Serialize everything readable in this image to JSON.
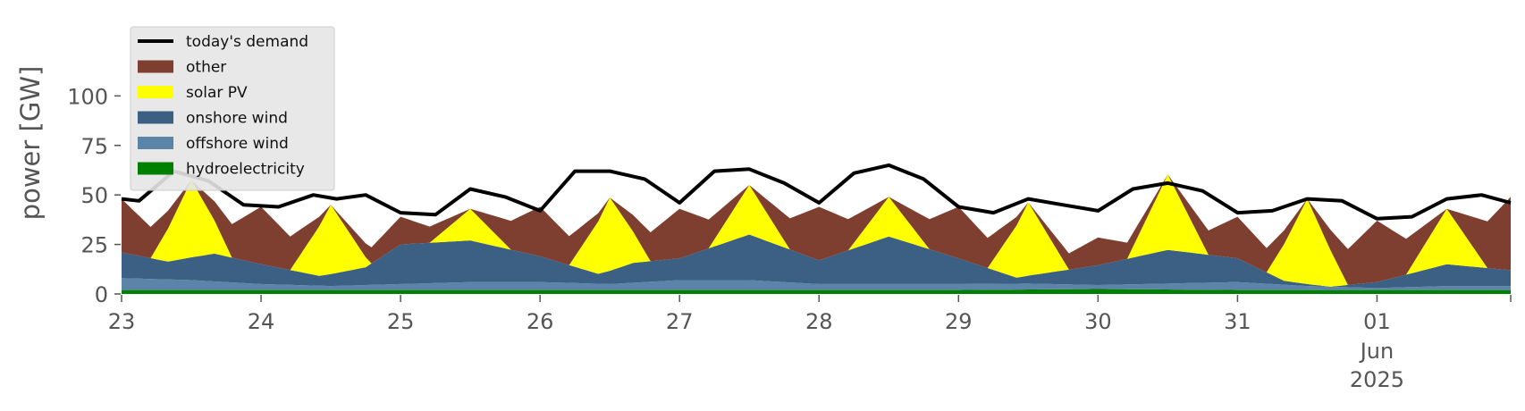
{
  "chart_data": {
    "type": "area",
    "title": "",
    "xlabel": "",
    "ylabel": "power [GW]",
    "ylim": [
      0,
      120
    ],
    "yticks": [
      0,
      25,
      50,
      75,
      100
    ],
    "ytick_labels": [
      "0",
      "25",
      "50",
      "75",
      "100"
    ],
    "x_start": "2025-05-23T00:00",
    "x_end": "2025-06-01T23:00",
    "xticks": [
      {
        "date": "2025-05-23",
        "label": "23"
      },
      {
        "date": "2025-05-24",
        "label": "24"
      },
      {
        "date": "2025-05-25",
        "label": "25"
      },
      {
        "date": "2025-05-26",
        "label": "26"
      },
      {
        "date": "2025-05-27",
        "label": "27"
      },
      {
        "date": "2025-05-28",
        "label": "28"
      },
      {
        "date": "2025-05-29",
        "label": "29"
      },
      {
        "date": "2025-05-30",
        "label": "30"
      },
      {
        "date": "2025-05-31",
        "label": "31"
      },
      {
        "date": "2025-06-01",
        "label": "01"
      }
    ],
    "xtick_sublabels": [
      "Jun",
      "2025"
    ],
    "grid": false,
    "legend": "top-left",
    "stacked": true,
    "series": [
      {
        "name": "hydroelectricity",
        "color": "#008000",
        "x": [
          "2025-05-23T00:00",
          "2025-05-24T00:00",
          "2025-05-25T00:00",
          "2025-05-26T00:00",
          "2025-05-27T00:00",
          "2025-05-28T00:00",
          "2025-05-29T00:00",
          "2025-05-30T00:00",
          "2025-05-31T00:00",
          "2025-06-01T00:00",
          "2025-06-01T23:00"
        ],
        "values": [
          2,
          2,
          2,
          2,
          2,
          2,
          2,
          2.5,
          2,
          2,
          2
        ]
      },
      {
        "name": "offshore wind",
        "color": "#5b84a8",
        "x": [
          "2025-05-23T00:00",
          "2025-05-23T12:00",
          "2025-05-24T00:00",
          "2025-05-24T12:00",
          "2025-05-25T00:00",
          "2025-05-25T12:00",
          "2025-05-26T00:00",
          "2025-05-26T12:00",
          "2025-05-27T00:00",
          "2025-05-27T12:00",
          "2025-05-28T00:00",
          "2025-05-28T12:00",
          "2025-05-29T00:00",
          "2025-05-29T12:00",
          "2025-05-30T00:00",
          "2025-05-30T12:00",
          "2025-05-31T00:00",
          "2025-05-31T12:00",
          "2025-06-01T00:00",
          "2025-06-01T12:00",
          "2025-06-01T23:00"
        ],
        "values": [
          6,
          5,
          3,
          2,
          3,
          4,
          4,
          3,
          5,
          5,
          3,
          3,
          3,
          3,
          2,
          3,
          4,
          2,
          1,
          2,
          2
        ]
      },
      {
        "name": "onshore wind",
        "color": "#3b6083",
        "x": [
          "2025-05-23T00:00",
          "2025-05-23T08:00",
          "2025-05-23T16:00",
          "2025-05-24T00:00",
          "2025-05-24T10:00",
          "2025-05-24T18:00",
          "2025-05-25T00:00",
          "2025-05-25T12:00",
          "2025-05-26T00:00",
          "2025-05-26T10:00",
          "2025-05-26T16:00",
          "2025-05-27T00:00",
          "2025-05-27T12:00",
          "2025-05-28T00:00",
          "2025-05-28T12:00",
          "2025-05-29T00:00",
          "2025-05-29T10:00",
          "2025-05-30T00:00",
          "2025-05-30T12:00",
          "2025-05-31T00:00",
          "2025-05-31T08:00",
          "2025-05-31T16:00",
          "2025-06-01T00:00",
          "2025-06-01T12:00",
          "2025-06-01T23:00"
        ],
        "values": [
          13,
          9,
          14,
          10,
          5,
          9,
          20,
          21,
          13,
          5,
          10,
          11,
          23,
          12,
          24,
          13,
          3,
          10,
          17,
          12,
          2,
          0,
          3,
          11,
          8
        ]
      },
      {
        "name": "solar PV",
        "color": "#ffff00",
        "x": [
          "2025-05-23T00:00",
          "2025-05-23T05:00",
          "2025-05-23T12:00",
          "2025-05-23T19:00",
          "2025-05-24T05:00",
          "2025-05-24T12:00",
          "2025-05-24T19:00",
          "2025-05-25T05:00",
          "2025-05-25T12:00",
          "2025-05-25T19:00",
          "2025-05-26T05:00",
          "2025-05-26T12:00",
          "2025-05-26T19:00",
          "2025-05-27T05:00",
          "2025-05-27T12:00",
          "2025-05-27T19:00",
          "2025-05-28T05:00",
          "2025-05-28T12:00",
          "2025-05-28T19:00",
          "2025-05-29T05:00",
          "2025-05-29T12:00",
          "2025-05-29T19:00",
          "2025-05-30T05:00",
          "2025-05-30T12:00",
          "2025-05-30T19:00",
          "2025-05-31T05:00",
          "2025-05-31T12:00",
          "2025-05-31T19:00",
          "2025-06-01T05:00",
          "2025-06-01T12:00",
          "2025-06-01T19:00"
        ],
        "values": [
          0,
          0,
          39,
          0,
          0,
          35,
          0,
          0,
          16,
          0,
          0,
          37,
          0,
          0,
          25,
          0,
          0,
          20,
          0,
          0,
          37,
          0,
          0,
          38,
          0,
          0,
          43,
          0,
          0,
          28,
          0
        ]
      },
      {
        "name": "other",
        "color": "#7f3f30",
        "x": [
          "2025-05-23T00:00",
          "2025-05-23T12:00",
          "2025-05-24T00:00",
          "2025-05-24T12:00",
          "2025-05-25T00:00",
          "2025-05-25T12:00",
          "2025-05-26T00:00",
          "2025-05-26T12:00",
          "2025-05-27T00:00",
          "2025-05-27T12:00",
          "2025-05-28T00:00",
          "2025-05-28T12:00",
          "2025-05-29T00:00",
          "2025-05-29T12:00",
          "2025-05-30T00:00",
          "2025-05-30T12:00",
          "2025-05-31T00:00",
          "2025-05-31T12:00",
          "2025-06-01T00:00",
          "2025-06-01T12:00",
          "2025-06-01T23:00"
        ],
        "values": [
          27,
          0,
          29,
          0,
          14,
          0,
          25,
          0,
          25,
          0,
          27,
          0,
          26,
          0,
          14,
          0,
          21,
          0,
          31,
          0,
          37
        ]
      },
      {
        "name": "today's demand",
        "color": "#000000",
        "kind": "line",
        "x": [
          "2025-05-23T00:00",
          "2025-05-23T03:00",
          "2025-05-23T09:00",
          "2025-05-23T15:00",
          "2025-05-23T21:00",
          "2025-05-24T03:00",
          "2025-05-24T09:00",
          "2025-05-24T13:00",
          "2025-05-24T18:00",
          "2025-05-25T00:00",
          "2025-05-25T06:00",
          "2025-05-25T12:00",
          "2025-05-25T18:00",
          "2025-05-26T00:00",
          "2025-05-26T06:00",
          "2025-05-26T12:00",
          "2025-05-26T18:00",
          "2025-05-27T00:00",
          "2025-05-27T06:00",
          "2025-05-27T12:00",
          "2025-05-27T18:00",
          "2025-05-28T00:00",
          "2025-05-28T06:00",
          "2025-05-28T12:00",
          "2025-05-28T18:00",
          "2025-05-29T00:00",
          "2025-05-29T06:00",
          "2025-05-29T12:00",
          "2025-05-29T18:00",
          "2025-05-30T00:00",
          "2025-05-30T06:00",
          "2025-05-30T12:00",
          "2025-05-30T18:00",
          "2025-05-31T00:00",
          "2025-05-31T06:00",
          "2025-05-31T12:00",
          "2025-05-31T18:00",
          "2025-06-01T00:00",
          "2025-06-01T06:00",
          "2025-06-01T12:00",
          "2025-06-01T18:00",
          "2025-06-01T23:00"
        ],
        "values": [
          48,
          47,
          62,
          57,
          45,
          44,
          50,
          48,
          50,
          41,
          40,
          53,
          49,
          42,
          62,
          62,
          58,
          46,
          62,
          63,
          56,
          46,
          61,
          65,
          58,
          44,
          41,
          48,
          45,
          42,
          53,
          56,
          52,
          41,
          42,
          48,
          47,
          38,
          39,
          48,
          50,
          46
        ]
      }
    ]
  }
}
